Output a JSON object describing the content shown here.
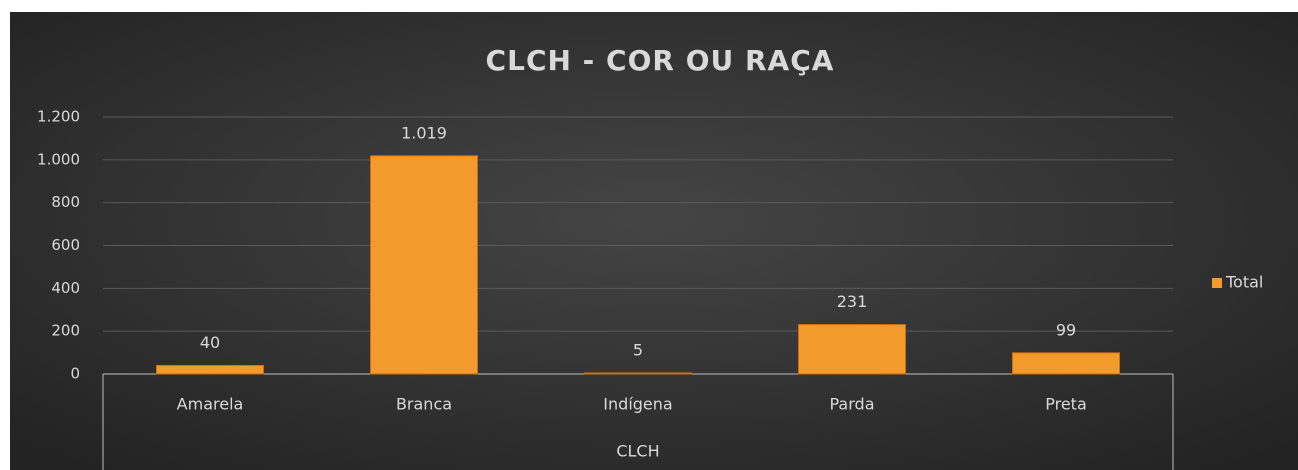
{
  "chart_data": {
    "type": "bar",
    "title": "CLCH - COR OU RAÇA",
    "x_label": "CLCH",
    "categories": [
      "Amarela",
      "Branca",
      "Indígena",
      "Parda",
      "Preta"
    ],
    "series": [
      {
        "name": "Total",
        "color": "#f39a2c",
        "values": [
          40,
          1019,
          5,
          231,
          99
        ],
        "value_labels": [
          "40",
          "1.019",
          "5",
          "231",
          "99"
        ]
      }
    ],
    "ylim": [
      0,
      1200
    ],
    "yticks": [
      0,
      200,
      400,
      600,
      800,
      {
        "value": 1000,
        "label": "1.000"
      },
      {
        "value": 1200,
        "label": "1.200"
      }
    ],
    "grid": true,
    "legend": "right"
  }
}
